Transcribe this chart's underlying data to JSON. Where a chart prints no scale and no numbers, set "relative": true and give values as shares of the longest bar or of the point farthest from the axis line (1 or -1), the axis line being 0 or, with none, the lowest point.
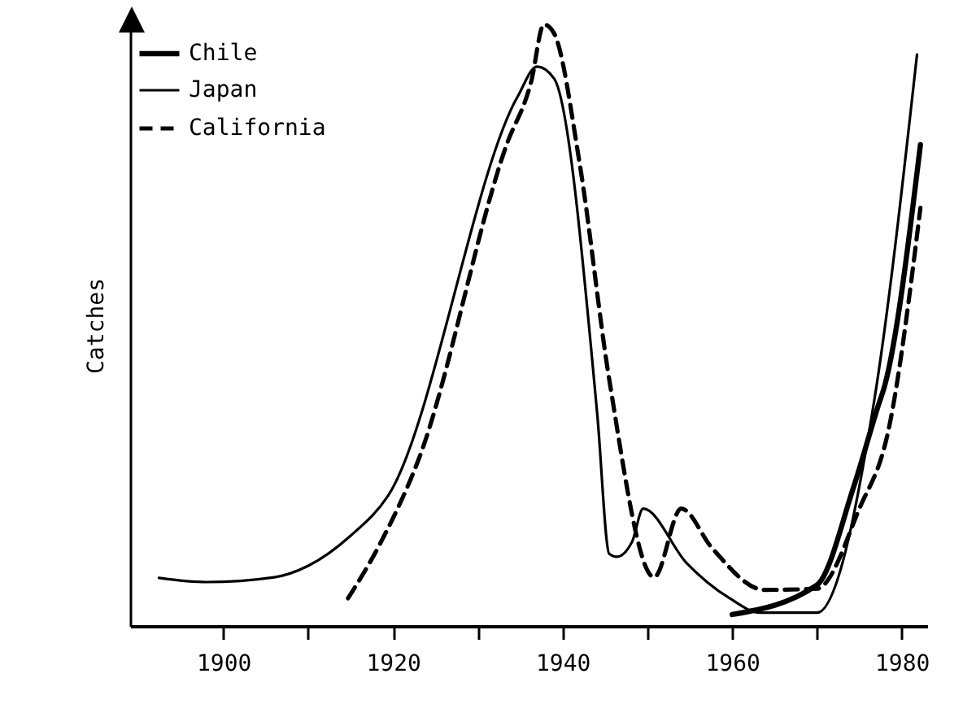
{
  "chart_data": {
    "type": "line",
    "relative": true,
    "ylabel": "Catches",
    "xlim": [
      1889,
      1983
    ],
    "xticks": [
      1900,
      {
        "value": 1910,
        "label": null
      },
      1920,
      {
        "value": 1930,
        "label": null
      },
      1940,
      {
        "value": 1950,
        "label": null
      },
      1960,
      {
        "value": 1970,
        "label": null
      },
      1980
    ],
    "legend": "top left",
    "grid": false,
    "series": [
      {
        "name": "Chile",
        "color": "#000000",
        "line_style": "solid",
        "x": [
          1960,
          1970,
          1974.3,
          1977.2,
          1978,
          1982.2
        ],
        "values": [
          0.019,
          0.068,
          0.23,
          0.365,
          0.4,
          0.8
        ]
      },
      {
        "name": "Japan",
        "color": "#000000",
        "line_style": "solid",
        "x": [
          1892.4,
          1898,
          1906,
          1910,
          1915,
          1919.4,
          1934.7,
          1937,
          1939,
          1944.1,
          1945.5,
          1946.4,
          1948.2,
          1949.5,
          1954.6,
          1959.7,
          1963.3,
          1970,
          1976.7,
          1981.8
        ],
        "values": [
          0.08,
          0.073,
          0.081,
          0.1,
          0.15,
          0.216,
          0.88,
          0.93,
          0.91,
          0.35,
          0.12,
          0.115,
          0.14,
          0.195,
          0.105,
          0.046,
          0.022,
          0.022,
          0.37,
          0.95
        ]
      },
      {
        "name": "California",
        "color": "#000000",
        "line_style": "dashed",
        "x": [
          1914.7,
          1918.6,
          1923,
          1933.4,
          1936.3,
          1937.8,
          1939,
          1942,
          1945.5,
          1950.8,
          1954,
          1957.6,
          1963.8,
          1970,
          1975,
          1978.5,
          1982.2
        ],
        "values": [
          0.046,
          0.14,
          0.276,
          0.8,
          0.905,
          1.0,
          0.985,
          0.77,
          0.41,
          0.081,
          0.195,
          0.13,
          0.06,
          0.062,
          0.195,
          0.33,
          0.695
        ]
      }
    ]
  }
}
